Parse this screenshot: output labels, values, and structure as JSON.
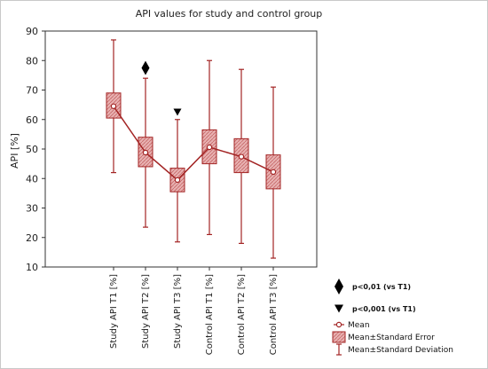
{
  "chart_data": {
    "type": "box",
    "title": "API values for study and control group",
    "xlabel": "",
    "ylabel": "API [%]",
    "ylim": [
      10,
      90
    ],
    "yticks": [
      10,
      20,
      30,
      40,
      50,
      60,
      70,
      80,
      90
    ],
    "grid": false,
    "categories": [
      "Study API T1 [%]",
      "Study API T2 [%]",
      "Study API T3 [%]",
      "Control API T1 [%]",
      "Control API T2 [%]",
      "Control API T3 [%]"
    ],
    "series": [
      {
        "name": "Mean",
        "values": [
          64.5,
          48.8,
          39.5,
          50.6,
          47.4,
          42.2
        ]
      },
      {
        "name": "Mean±Standard Error",
        "lower": [
          60.5,
          44.0,
          35.5,
          45.0,
          42.0,
          36.5
        ],
        "upper": [
          69.0,
          54.0,
          43.5,
          56.5,
          53.5,
          48.0
        ]
      },
      {
        "name": "Mean±Standard Deviation",
        "lower": [
          42.0,
          23.5,
          18.5,
          21.0,
          18.0,
          13.0
        ],
        "upper": [
          87.0,
          74.0,
          60.0,
          80.0,
          77.0,
          71.0
        ]
      }
    ],
    "annotations": [
      {
        "category_index": 1,
        "symbol": "diamond",
        "y": 77.5,
        "meaning": "p<0,01 (vs T1)"
      },
      {
        "category_index": 2,
        "symbol": "triangle-down",
        "y": 62.5,
        "meaning": "p<0,001 (vs T1)"
      }
    ],
    "significance_legend": [
      {
        "symbol": "diamond",
        "label": "p<0,01 (vs T1)"
      },
      {
        "symbol": "triangle-down",
        "label": "p<0,001 (vs T1)"
      }
    ],
    "legend": [
      {
        "symbol": "mean-circle",
        "label": "Mean"
      },
      {
        "symbol": "se-box",
        "label": "Mean±Standard Error"
      },
      {
        "symbol": "sd-whisker",
        "label": "Mean±Standard Deviation"
      }
    ],
    "colors": {
      "line": "#a32424",
      "box_fill": "#e8b1b1",
      "box_hatch": "#c56767",
      "marker": "#000000",
      "axis": "#333333"
    }
  }
}
